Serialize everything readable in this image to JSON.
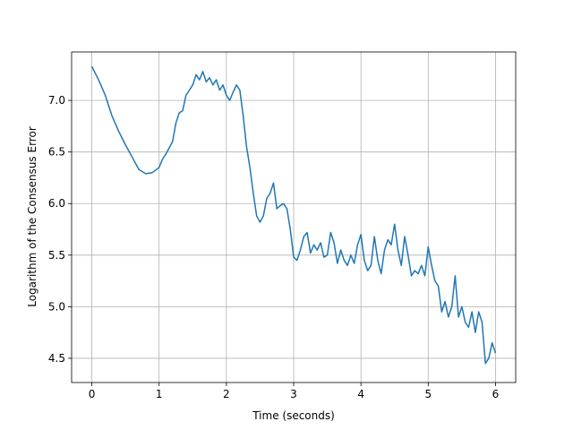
{
  "chart_data": {
    "type": "line",
    "xlabel": "Time (seconds)",
    "ylabel": "Logarithm of the Consensus Error",
    "xlim": [
      -0.3,
      6.3
    ],
    "ylim": [
      4.265,
      7.47
    ],
    "xticks": [
      0,
      1,
      2,
      3,
      4,
      5,
      6
    ],
    "yticks": [
      4.5,
      {
        "value": 5.0,
        "label": "5.0"
      },
      5.5,
      {
        "value": 6.0,
        "label": "6.0"
      },
      6.5,
      {
        "value": 7.0,
        "label": "7.0"
      }
    ],
    "grid": true,
    "x": [
      0,
      0.1,
      0.2,
      0.3,
      0.4,
      0.5,
      0.6,
      0.7,
      0.8,
      0.9,
      1.0,
      1.05,
      1.1,
      1.2,
      1.25,
      1.3,
      1.35,
      1.4,
      1.45,
      1.5,
      1.55,
      1.6,
      1.65,
      1.7,
      1.75,
      1.8,
      1.85,
      1.9,
      1.95,
      2.0,
      2.05,
      2.1,
      2.15,
      2.2,
      2.25,
      2.3,
      2.35,
      2.4,
      2.45,
      2.5,
      2.55,
      2.6,
      2.65,
      2.7,
      2.75,
      2.8,
      2.85,
      2.9,
      2.95,
      3.0,
      3.05,
      3.1,
      3.15,
      3.2,
      3.25,
      3.3,
      3.35,
      3.4,
      3.45,
      3.5,
      3.55,
      3.6,
      3.65,
      3.7,
      3.75,
      3.8,
      3.85,
      3.9,
      3.95,
      4.0,
      4.05,
      4.1,
      4.15,
      4.2,
      4.25,
      4.3,
      4.35,
      4.4,
      4.45,
      4.5,
      4.55,
      4.6,
      4.65,
      4.7,
      4.75,
      4.8,
      4.85,
      4.9,
      4.95,
      5.0,
      5.05,
      5.1,
      5.15,
      5.2,
      5.25,
      5.3,
      5.35,
      5.4,
      5.45,
      5.5,
      5.55,
      5.6,
      5.65,
      5.7,
      5.75,
      5.8,
      5.85,
      5.9,
      5.95,
      6.0
    ],
    "series": [
      {
        "color": "#1f77b4",
        "values": [
          7.33,
          7.2,
          7.05,
          6.85,
          6.7,
          6.57,
          6.45,
          6.33,
          6.29,
          6.3,
          6.35,
          6.43,
          6.48,
          6.6,
          6.78,
          6.88,
          6.9,
          7.05,
          7.1,
          7.15,
          7.25,
          7.2,
          7.28,
          7.18,
          7.22,
          7.15,
          7.2,
          7.1,
          7.15,
          7.05,
          7.0,
          7.08,
          7.15,
          7.1,
          6.85,
          6.55,
          6.35,
          6.1,
          5.88,
          5.82,
          5.88,
          6.05,
          6.1,
          6.2,
          5.95,
          5.98,
          6.0,
          5.95,
          5.75,
          5.48,
          5.45,
          5.55,
          5.68,
          5.72,
          5.52,
          5.6,
          5.55,
          5.62,
          5.48,
          5.5,
          5.72,
          5.62,
          5.42,
          5.55,
          5.45,
          5.4,
          5.5,
          5.42,
          5.6,
          5.7,
          5.45,
          5.35,
          5.4,
          5.68,
          5.45,
          5.32,
          5.55,
          5.65,
          5.6,
          5.8,
          5.55,
          5.4,
          5.68,
          5.5,
          5.3,
          5.35,
          5.32,
          5.4,
          5.3,
          5.58,
          5.4,
          5.25,
          5.2,
          4.95,
          5.05,
          4.9,
          5.0,
          5.3,
          4.9,
          5.0,
          4.85,
          4.8,
          4.95,
          4.75,
          4.95,
          4.85,
          4.45,
          4.5,
          4.65,
          4.55
        ]
      }
    ]
  }
}
